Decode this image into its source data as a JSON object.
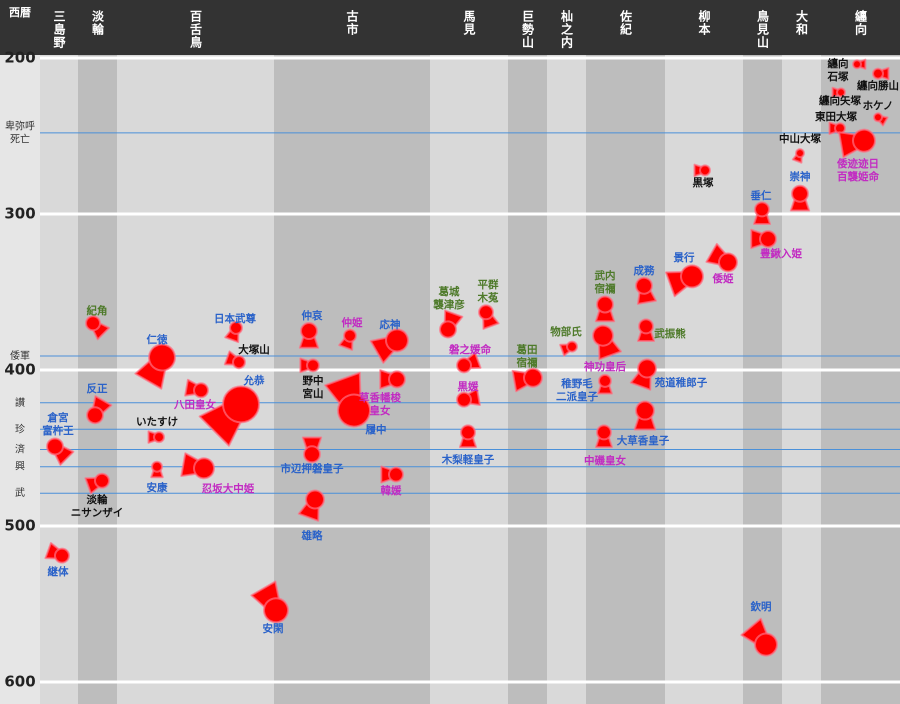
{
  "chart_data": {
    "type": "kofun",
    "y_axis_label": "西暦",
    "ylim": [
      200,
      600
    ],
    "yticks": [
      200,
      300,
      400,
      500,
      600
    ],
    "grid": true,
    "regions": [
      "三島野",
      "淡輪",
      "百舌鳥",
      "古市",
      "馬見",
      "巨勢山",
      "杣之内",
      "佐紀",
      "柳本",
      "鳥見山",
      "大和",
      "纏向"
    ],
    "annotations": [
      {
        "label": [
          "卑弥呼",
          "死亡"
        ],
        "year": 248
      },
      {
        "label": [
          "倭軍"
        ],
        "year": 391
      },
      {
        "label": [
          "讃"
        ],
        "year": 421
      },
      {
        "label": [
          "珍"
        ],
        "year": 438
      },
      {
        "label": [
          "済"
        ],
        "year": 451
      },
      {
        "label": [
          "興"
        ],
        "year": 462
      },
      {
        "label": [
          "武"
        ],
        "year": 479
      }
    ],
    "mark_color": "#ff0000",
    "tombs": [
      {
        "label": [
          "紀角"
        ],
        "year": 370,
        "color": "#4e7a2a"
      },
      {
        "label": [
          "反正"
        ],
        "year": 429,
        "color": "#2a62c9"
      },
      {
        "label": [
          "倉宮",
          "富杵王"
        ],
        "year": 449,
        "color": "#2a62c9"
      },
      {
        "label": [
          "淡輪",
          "ニサンザイ"
        ],
        "year": 471,
        "color": "#111111"
      },
      {
        "label": [
          "継体"
        ],
        "year": 519,
        "color": "#2a62c9"
      },
      {
        "label": [
          "仁徳"
        ],
        "year": 392,
        "color": "#2a62c9"
      },
      {
        "label": [
          "八田皇女"
        ],
        "year": 413,
        "color": "#c22bc2"
      },
      {
        "label": [
          "いたすけ"
        ],
        "year": 443,
        "color": "#111111"
      },
      {
        "label": [
          "安康"
        ],
        "year": 462,
        "color": "#2a62c9"
      },
      {
        "label": [
          "忍坂大中姫"
        ],
        "year": 463,
        "color": "#c22bc2"
      },
      {
        "label": [
          "日本武尊"
        ],
        "year": 373,
        "color": "#2a62c9"
      },
      {
        "label": [
          "大塚山"
        ],
        "year": 395,
        "color": "#111111"
      },
      {
        "label": [
          "允恭"
        ],
        "year": 422,
        "color": "#2a62c9"
      },
      {
        "label": [
          "安閑"
        ],
        "year": 554,
        "color": "#2a62c9"
      },
      {
        "label": [
          "仲哀"
        ],
        "year": 375,
        "color": "#2a62c9"
      },
      {
        "label": [
          "野中",
          "宮山"
        ],
        "year": 397,
        "color": "#111111"
      },
      {
        "label": [
          "仲姫"
        ],
        "year": 378,
        "color": "#c22bc2"
      },
      {
        "label": [
          "応神"
        ],
        "year": 381,
        "color": "#2a62c9"
      },
      {
        "label": [
          "履中"
        ],
        "year": 426,
        "color": "#2a62c9"
      },
      {
        "label": [
          "草香幡梭",
          "皇女"
        ],
        "year": 406,
        "color": "#c22bc2"
      },
      {
        "label": [
          "市辺押磐皇子"
        ],
        "year": 454,
        "color": "#2a62c9"
      },
      {
        "label": [
          "雄略"
        ],
        "year": 483,
        "color": "#2a62c9"
      },
      {
        "label": [
          "韓媛"
        ],
        "year": 467,
        "color": "#c22bc2"
      },
      {
        "label": [
          "葛城",
          "襲津彦"
        ],
        "year": 374,
        "color": "#4e7a2a"
      },
      {
        "label": [
          "平群",
          "木菟"
        ],
        "year": 363,
        "color": "#4e7a2a"
      },
      {
        "label": [
          "磐之媛命"
        ],
        "year": 397,
        "color": "#c22bc2"
      },
      {
        "label": [
          "黒媛"
        ],
        "year": 419,
        "color": "#c22bc2"
      },
      {
        "label": [
          "木梨軽皇子"
        ],
        "year": 440,
        "color": "#2a62c9"
      },
      {
        "label": [
          "葛田",
          "宿禰"
        ],
        "year": 405,
        "color": "#4e7a2a"
      },
      {
        "label": [
          "物部氏"
        ],
        "year": 385,
        "color": "#4e7a2a"
      },
      {
        "label": [
          "武内",
          "宿禰"
        ],
        "year": 358,
        "color": "#4e7a2a"
      },
      {
        "label": [
          "神功皇后"
        ],
        "year": 378,
        "color": "#c22bc2"
      },
      {
        "label": [
          "稚野毛",
          "二派皇子"
        ],
        "year": 407,
        "color": "#2a62c9"
      },
      {
        "label": [
          "中磯皇女"
        ],
        "year": 440,
        "color": "#c22bc2"
      },
      {
        "label": [
          "成務"
        ],
        "year": 346,
        "color": "#2a62c9"
      },
      {
        "label": [
          "武振熊"
        ],
        "year": 372,
        "color": "#4e7a2a"
      },
      {
        "label": [
          "苑道稚郎子"
        ],
        "year": 399,
        "color": "#2a62c9"
      },
      {
        "label": [
          "大草香皇子"
        ],
        "year": 426,
        "color": "#2a62c9"
      },
      {
        "label": [
          "景行"
        ],
        "year": 340,
        "color": "#2a62c9"
      },
      {
        "label": [
          "黒塚"
        ],
        "year": 272,
        "color": "#111111"
      },
      {
        "label": [
          "倭姫"
        ],
        "year": 331,
        "color": "#c22bc2"
      },
      {
        "label": [
          "垂仁"
        ],
        "year": 297,
        "color": "#2a62c9"
      },
      {
        "label": [
          "豊鍬入姫"
        ],
        "year": 316,
        "color": "#c22bc2"
      },
      {
        "label": [
          "欽明"
        ],
        "year": 576,
        "color": "#2a62c9"
      },
      {
        "label": [
          "中山大塚"
        ],
        "year": 261,
        "color": "#111111"
      },
      {
        "label": [
          "崇神"
        ],
        "year": 287,
        "color": "#2a62c9"
      },
      {
        "label": [
          "纏向",
          "石塚"
        ],
        "year": 204,
        "color": "#111111"
      },
      {
        "label": [
          "纏向勝山"
        ],
        "year": 210,
        "color": "#111111"
      },
      {
        "label": [
          "纏向矢塚"
        ],
        "year": 222,
        "color": "#111111"
      },
      {
        "label": [
          "ホケノ"
        ],
        "year": 238,
        "color": "#111111"
      },
      {
        "label": [
          "東田大塚"
        ],
        "year": 245,
        "color": "#111111"
      },
      {
        "label": [
          "倭迹迹日",
          "百襲姫命"
        ],
        "year": 253,
        "color": "#c22bc2"
      }
    ]
  }
}
